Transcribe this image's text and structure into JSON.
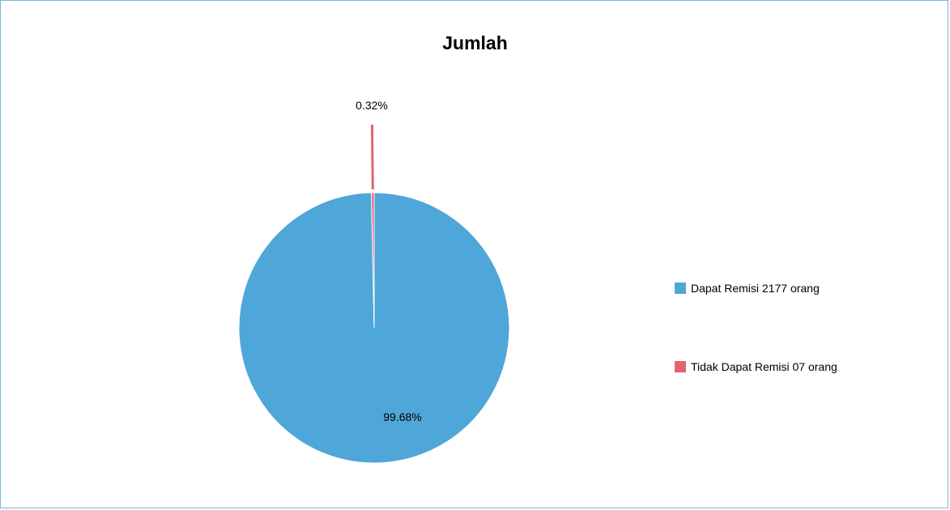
{
  "chart_data": {
    "type": "pie",
    "title": "Jumlah",
    "slices": [
      {
        "label": "Dapat Remisi 2177 orang",
        "value": 99.68,
        "data_label": "99.68%",
        "color": "#4fa6d8"
      },
      {
        "label": "Tidak Dapat Remisi 07 orang",
        "value": 0.32,
        "data_label": "0.32%",
        "color": "#e06470"
      }
    ],
    "legend_position": "right"
  }
}
